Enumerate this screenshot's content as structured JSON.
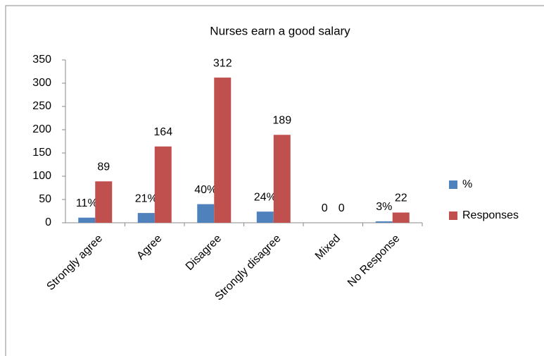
{
  "chart_data": {
    "type": "bar",
    "title": "Nurses earn a good salary",
    "categories": [
      "Strongly agree",
      "Agree",
      "Disagree",
      "Strongly disagree",
      "Mixed",
      "No Response"
    ],
    "series": [
      {
        "name": "%",
        "color": "#4f81bd",
        "values": [
          11,
          21,
          40,
          24,
          0,
          3
        ],
        "value_labels": [
          "11%",
          "21%",
          "40%",
          "24%",
          "0",
          "3%"
        ]
      },
      {
        "name": "Responses",
        "color": "#c0504d",
        "values": [
          89,
          164,
          312,
          189,
          0,
          22
        ]
      }
    ],
    "ylim": [
      0,
      350
    ],
    "yticks": [
      0,
      50,
      100,
      150,
      200,
      250,
      300,
      350
    ],
    "grid": false,
    "legend": "right"
  }
}
